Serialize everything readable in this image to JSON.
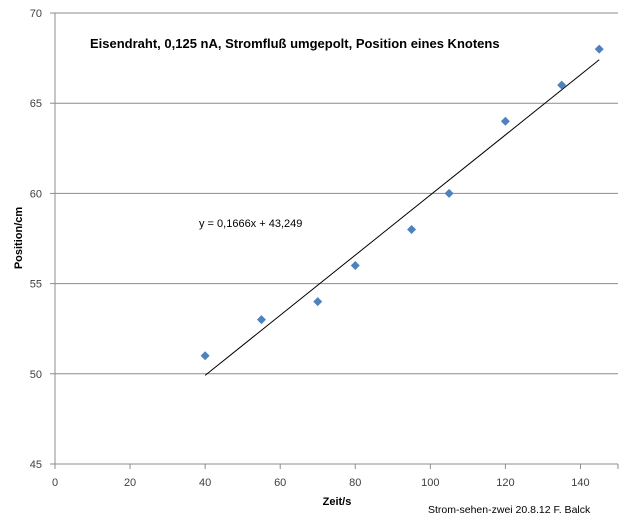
{
  "chart_data": {
    "type": "scatter",
    "title": "Eisendraht, 0,125  nA, Stromfluß umgepolt, Position eines Knotens",
    "xlabel": "Zeit/s",
    "ylabel": "Position/cm",
    "xlim": [
      0,
      150
    ],
    "ylim": [
      45,
      70
    ],
    "x_ticks": [
      0,
      20,
      40,
      60,
      80,
      100,
      120,
      140
    ],
    "y_ticks": [
      45,
      50,
      55,
      60,
      65,
      70
    ],
    "grid": "horizontal",
    "marker_color": "#4F81BD",
    "line_color": "#000000",
    "series": [
      {
        "x": [
          40,
          55,
          70,
          80,
          95,
          105,
          120,
          135,
          145
        ],
        "y": [
          51,
          53,
          54,
          56,
          58,
          60,
          64,
          66,
          68
        ]
      }
    ],
    "trendline": {
      "slope": 0.1666,
      "intercept": 43.249,
      "x_range": [
        40,
        145
      ],
      "equation": "y = 0,1666x + 43,249"
    },
    "credit": "Strom-sehen-zwei 20.8.12 F. Balck"
  }
}
